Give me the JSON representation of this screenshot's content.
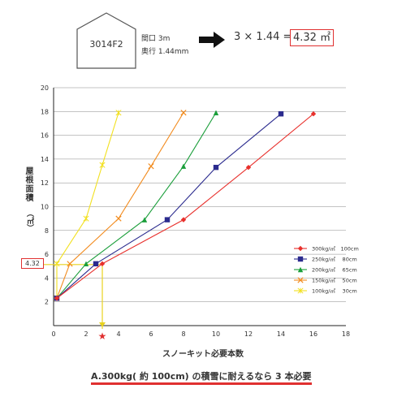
{
  "house": {
    "model": "3014F2",
    "frontage": "間口 3m",
    "depth": "奥行 1.44mm",
    "formula": "3 × 1.44 =",
    "result": "4.32 ㎡"
  },
  "chart_data": {
    "type": "line",
    "xlabel": "スノーキット必要本数",
    "ylabel": "屋根面積",
    "yunit": "（㎡）",
    "xlim": [
      0,
      18
    ],
    "ylim": [
      0,
      20
    ],
    "xticks": [
      0,
      2,
      4,
      6,
      8,
      10,
      12,
      14,
      16,
      18
    ],
    "yticks": [
      2,
      4,
      6,
      8,
      10,
      12,
      14,
      16,
      18,
      20
    ],
    "series": [
      {
        "name": "300kg/㎡　100cm",
        "color": "#e8302c",
        "marker": "diamond",
        "points": [
          [
            0.2,
            2.3
          ],
          [
            3.0,
            5.2
          ],
          [
            8.0,
            8.9
          ],
          [
            12.0,
            13.3
          ],
          [
            16.0,
            17.8
          ]
        ]
      },
      {
        "name": "250kg/㎡　 80cm",
        "color": "#2b2b8e",
        "marker": "square",
        "points": [
          [
            0.2,
            2.3
          ],
          [
            2.6,
            5.2
          ],
          [
            7.0,
            8.9
          ],
          [
            10.0,
            13.3
          ],
          [
            14.0,
            17.8
          ]
        ]
      },
      {
        "name": "200kg/㎡　 65cm",
        "color": "#1a9e3a",
        "marker": "triangle",
        "points": [
          [
            0.2,
            2.3
          ],
          [
            2.0,
            5.2
          ],
          [
            5.6,
            8.9
          ],
          [
            8.0,
            13.4
          ],
          [
            10.0,
            17.9
          ]
        ]
      },
      {
        "name": "150kg/㎡　 50cm",
        "color": "#f28b1e",
        "marker": "x",
        "points": [
          [
            0.2,
            2.3
          ],
          [
            1.0,
            5.2
          ],
          [
            4.0,
            9.0
          ],
          [
            6.0,
            13.4
          ],
          [
            8.0,
            17.9
          ]
        ]
      },
      {
        "name": "100kg/㎡　 30cm",
        "color": "#f2e01e",
        "marker": "asterisk",
        "points": [
          [
            0.2,
            2.3
          ],
          [
            0.2,
            5.2
          ],
          [
            2.0,
            9.0
          ],
          [
            3.0,
            13.5
          ],
          [
            4.0,
            17.9
          ]
        ]
      }
    ],
    "reference": {
      "y": 4.32,
      "y_label": "4.32",
      "x": 3,
      "x_marker": "★"
    }
  },
  "answer": "A.300kg( 約 100cm) の積雪に耐えるなら 3 本必要"
}
